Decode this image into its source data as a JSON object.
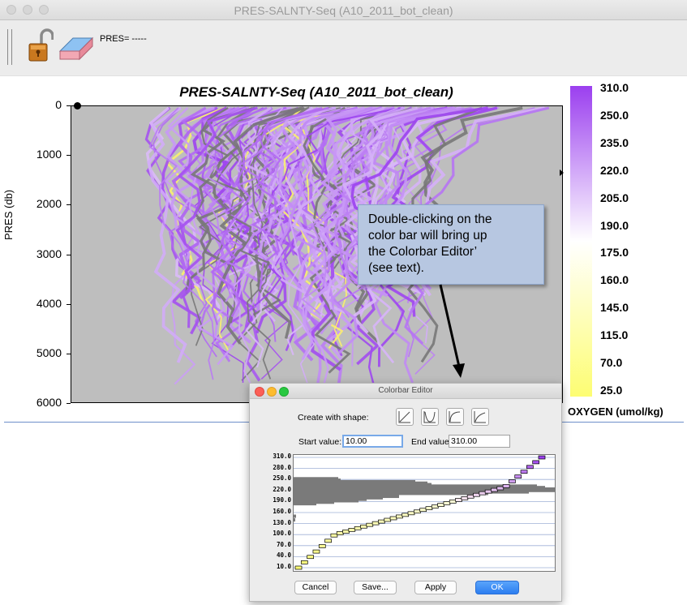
{
  "window": {
    "title": "PRES-SALNTY-Seq (A10_2011_bot_clean)"
  },
  "toolbar": {
    "readout": "PRES= -----",
    "lock_icon": "padlock-open-icon",
    "eraser_icon": "eraser-icon"
  },
  "plot": {
    "title": "PRES-SALNTY-Seq (A10_2011_bot_clean)",
    "ylabel": "PRES (db)",
    "yticks": [
      "0",
      "1000",
      "2000",
      "3000",
      "4000",
      "5000",
      "6000"
    ],
    "ylim": [
      0,
      6000
    ],
    "background": "#bebebe"
  },
  "colorbar": {
    "labels": [
      "310.0",
      "250.0",
      "235.0",
      "220.0",
      "205.0",
      "190.0",
      "175.0",
      "160.0",
      "145.0",
      "115.0",
      "70.0",
      "25.0"
    ],
    "unit_label": "OXYGEN (umol/kg)",
    "low_color": "#fdfd72",
    "mid_color": "#ffffff",
    "high_color": "#9b3fef"
  },
  "callout": {
    "lines": [
      "Double-clicking on the",
      "color bar will bring up",
      "the Colorbar Editor’",
      "(see text)."
    ]
  },
  "editor": {
    "title": "Colorbar Editor",
    "shape_label": "Create with shape:",
    "shape_icons": [
      "linear-shape-icon",
      "bowl-shape-icon",
      "log-shape-icon",
      "exp-shape-icon"
    ],
    "start_label": "Start value:",
    "start_value": "10.00",
    "end_label": "End value:",
    "end_value": "310.00",
    "axis_labels": [
      "310.0",
      "280.0",
      "250.0",
      "220.0",
      "190.0",
      "160.0",
      "130.0",
      "100.0",
      "70.0",
      "40.0",
      "10.0"
    ],
    "buttons": {
      "cancel": "Cancel",
      "save": "Save...",
      "apply": "Apply",
      "ok": "OK"
    }
  }
}
